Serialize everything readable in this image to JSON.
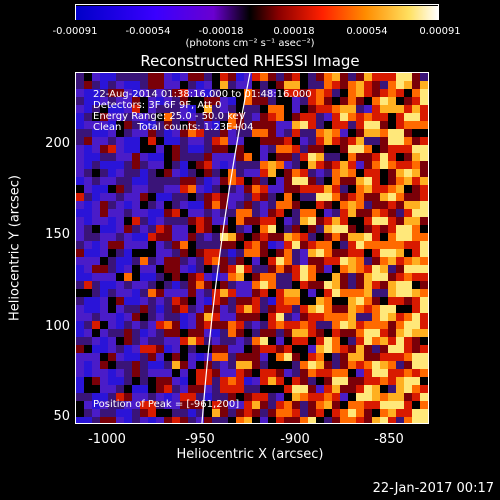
{
  "colorbar": {
    "ticks": [
      "-0.00091",
      "-0.00054",
      "-0.00018",
      "0.00018",
      "0.00054",
      "0.00091"
    ],
    "units": "(photons cm⁻² s⁻¹ asec⁻²)"
  },
  "title": "Reconstructed RHESSI Image",
  "annotations": {
    "line1": "22-Aug-2014 01:38:16.000 to 01:48:16.000",
    "line2": "Detectors: 3F 6F 9F, Att 0",
    "line3": "Energy Range: 25.0 - 50.0 keV",
    "line4": "Clean     Total counts: 1.23E+04",
    "peak": "Position of Peak = [-961,200]"
  },
  "axes": {
    "xlabel": "Heliocentric X (arcsec)",
    "ylabel": "Heliocentric Y (arcsec)",
    "xticks": [
      "-1000",
      "-950",
      "-900",
      "-850"
    ],
    "yticks": [
      "200",
      "150",
      "100",
      "50"
    ],
    "xlim": [
      -1018,
      -828
    ],
    "ylim": [
      46,
      236
    ]
  },
  "footer": "22-Jan-2017 00:17",
  "colors": {
    "background": "#000000",
    "limb_line": "#ffffff"
  }
}
